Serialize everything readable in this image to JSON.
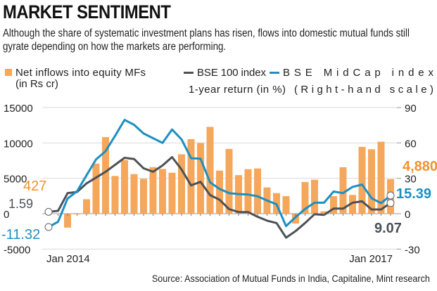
{
  "header": {
    "title": "MARKET SENTIMENT",
    "subtitle": "Although the share of systematic investment plans has risen, flows into domestic mutual funds still gyrate depending on how the markets are performing."
  },
  "source": "Source: Association of Mutual Funds in India, Capitaline, Mint research",
  "chart_data": {
    "type": "bar+line",
    "legend": {
      "bars_label_line1": "Net inflows into equity MFs",
      "bars_label_line2": "(in Rs cr)",
      "line1": "BSE 100 index",
      "line2": "BSE MidCap index",
      "lines_note": "1-year return (in %)",
      "right_note": "(Right-hand scale)",
      "placement": "top"
    },
    "colors": {
      "bars": "#f5a75c",
      "bse100": "#4b5157",
      "midcap": "#1d8fc2",
      "grid": "#d9d9d9"
    },
    "x_start": "Jan 2014",
    "x_end": "Jan 2017",
    "x_tick_labels": [
      "Jan 2014",
      "Jan 2017"
    ],
    "frequency": "monthly",
    "left_axis": {
      "ylim": [
        -5000,
        15000
      ],
      "ticks": [
        "15000",
        "10000",
        "5000",
        "0",
        "-5000"
      ],
      "values": [
        15000,
        10000,
        5000,
        0,
        -5000
      ]
    },
    "right_axis": {
      "ylim": [
        -30,
        90
      ],
      "ticks": [
        "90",
        "60",
        "30",
        "0",
        "-30"
      ],
      "values": [
        90,
        60,
        30,
        0,
        -30
      ]
    },
    "grid": true,
    "series": [
      {
        "name": "Net inflows into equity MFs",
        "axis": "left",
        "type": "bar",
        "values": [
          427,
          0,
          -1970,
          -100,
          2040,
          7070,
          10820,
          5330,
          7570,
          5590,
          4930,
          6580,
          6320,
          5790,
          8390,
          10530,
          10000,
          12270,
          6090,
          9150,
          5450,
          6290,
          6390,
          3710,
          2910,
          2480,
          -1390,
          4470,
          4800,
          330,
          2480,
          6560,
          2650,
          9440,
          9110,
          10170,
          4880
        ]
      },
      {
        "name": "BSE 100 index",
        "axis": "right",
        "type": "line",
        "values": [
          1.59,
          2.4,
          17.4,
          18.4,
          25.7,
          30.6,
          35.5,
          41.4,
          47.4,
          46.4,
          38.5,
          35.5,
          40.9,
          48,
          37.5,
          24,
          27,
          15.8,
          11.8,
          3.9,
          1.4,
          1.4,
          -2.6,
          -5.9,
          -7.9,
          -20.3,
          -14.8,
          -7.9,
          -0.4,
          -1,
          4.3,
          4.3,
          9.3,
          10.5,
          3.6,
          3.6,
          9.07
        ]
      },
      {
        "name": "BSE MidCap index",
        "axis": "right",
        "type": "line",
        "values": [
          -11.32,
          -6.9,
          12.8,
          19,
          32.6,
          46,
          53,
          66,
          79.5,
          75.4,
          68,
          64,
          60,
          71.4,
          63,
          47,
          46.6,
          26.6,
          21,
          17.4,
          16.6,
          16.2,
          14.8,
          11.2,
          7.9,
          -10.5,
          -3,
          4,
          9.3,
          9.3,
          18.8,
          17.4,
          22.7,
          24.7,
          13.2,
          8.9,
          15.39
        ]
      }
    ],
    "annotations": {
      "bars_first": "427",
      "bars_last": "4,880",
      "bse100_first": "1.59",
      "bse100_last": "9.07",
      "midcap_first": "-11.32",
      "midcap_last": "15.39"
    }
  }
}
